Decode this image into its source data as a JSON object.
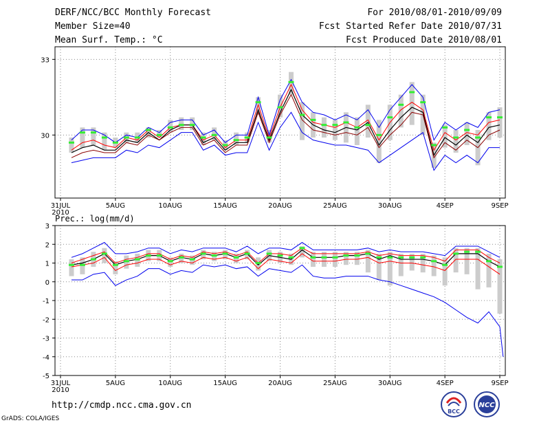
{
  "header": {
    "title": "DERF/NCC/BCC Monthly Forecast",
    "member_size": "Member Size=40",
    "variable": "Mean Surf. Temp.: °C",
    "period": "For 2010/08/01-2010/09/09",
    "fcst_started": "Fcst Started Refer Date 2010/07/31",
    "fcst_produced": "Fcst Produced Date 2010/08/01"
  },
  "footer": {
    "url": "http://cmdp.ncc.cma.gov.cn",
    "grads": "GrADS: COLA/IGES",
    "logo_bcc": "BCC",
    "logo_ncc": "NCC"
  },
  "colors": {
    "max_line": "#0000ee",
    "min_line": "#0000ee",
    "mean_line": "#000000",
    "dark_red_line": "#8b0000",
    "red_line": "#ff0000",
    "green_mark": "#33ee33",
    "box": "#cccccc"
  },
  "chart_data": [
    {
      "type": "line",
      "panel": "temperature",
      "title": "Mean Surf. Temp.: °C",
      "x_tick_labels": [
        "31JUL",
        "5AUG",
        "10AUG",
        "15AUG",
        "20AUG",
        "25AUG",
        "30AUG",
        "4SEP",
        "9SEP"
      ],
      "x_tick_days": [
        0,
        5,
        10,
        15,
        20,
        25,
        30,
        35,
        40
      ],
      "x_sublabel": "2010",
      "xlim": [
        -0.5,
        40.5
      ],
      "ylim": [
        27.5,
        33.5
      ],
      "y_ticks": [
        30,
        33
      ],
      "grid": true,
      "x": [
        1,
        2,
        3,
        4,
        5,
        6,
        7,
        8,
        9,
        10,
        11,
        12,
        13,
        14,
        15,
        16,
        17,
        18,
        19,
        20,
        21,
        22,
        23,
        24,
        25,
        26,
        27,
        28,
        29,
        30,
        31,
        32,
        33,
        34,
        35,
        36,
        37,
        38,
        39,
        40
      ],
      "series": [
        {
          "name": "max",
          "values": [
            29.8,
            30.2,
            30.2,
            30.0,
            29.7,
            30.0,
            29.9,
            30.3,
            30.1,
            30.5,
            30.6,
            30.6,
            30.0,
            30.2,
            29.7,
            30.0,
            30.0,
            31.5,
            30.0,
            31.4,
            32.2,
            31.3,
            30.9,
            30.8,
            30.6,
            30.8,
            30.6,
            31.0,
            30.3,
            31.0,
            31.5,
            32.0,
            31.5,
            29.8,
            30.5,
            30.2,
            30.5,
            30.3,
            30.9,
            31.0
          ]
        },
        {
          "name": "ens_upper",
          "values": [
            29.4,
            29.7,
            29.8,
            29.6,
            29.5,
            29.9,
            29.8,
            30.2,
            29.9,
            30.3,
            30.4,
            30.4,
            29.8,
            30.0,
            29.5,
            29.8,
            29.8,
            31.2,
            29.9,
            31.1,
            32.0,
            31.0,
            30.5,
            30.4,
            30.3,
            30.5,
            30.3,
            30.6,
            29.8,
            30.5,
            31.0,
            31.3,
            31.0,
            29.4,
            30.1,
            29.8,
            30.1,
            30.0,
            30.5,
            30.6
          ]
        },
        {
          "name": "mean",
          "values": [
            29.3,
            29.5,
            29.6,
            29.4,
            29.4,
            29.8,
            29.7,
            30.1,
            29.8,
            30.2,
            30.4,
            30.4,
            29.7,
            29.9,
            29.4,
            29.7,
            29.7,
            31.0,
            29.8,
            30.9,
            31.8,
            30.8,
            30.4,
            30.2,
            30.1,
            30.3,
            30.2,
            30.5,
            29.6,
            30.2,
            30.7,
            31.1,
            30.9,
            29.2,
            29.9,
            29.6,
            30.0,
            29.7,
            30.3,
            30.4
          ]
        },
        {
          "name": "ens_lower",
          "values": [
            29.1,
            29.3,
            29.4,
            29.3,
            29.3,
            29.7,
            29.6,
            30.0,
            29.8,
            30.1,
            30.3,
            30.3,
            29.6,
            29.8,
            29.3,
            29.6,
            29.6,
            30.9,
            29.7,
            30.8,
            31.6,
            30.6,
            30.2,
            30.1,
            30.0,
            30.1,
            30.0,
            30.3,
            29.5,
            30.0,
            30.4,
            30.9,
            30.8,
            29.1,
            29.7,
            29.4,
            29.8,
            29.5,
            30.0,
            30.2
          ]
        },
        {
          "name": "min",
          "values": [
            28.9,
            29.0,
            29.1,
            29.1,
            29.1,
            29.4,
            29.3,
            29.6,
            29.5,
            29.8,
            30.1,
            30.1,
            29.4,
            29.6,
            29.2,
            29.3,
            29.3,
            30.5,
            29.4,
            30.3,
            30.9,
            30.1,
            29.8,
            29.7,
            29.6,
            29.6,
            29.5,
            29.4,
            28.9,
            29.2,
            29.5,
            29.8,
            30.1,
            28.6,
            29.2,
            28.9,
            29.2,
            28.9,
            29.5,
            29.5
          ]
        },
        {
          "name": "green",
          "values": [
            29.7,
            30.1,
            30.1,
            29.9,
            29.7,
            29.9,
            29.9,
            30.2,
            30.0,
            30.3,
            30.4,
            30.4,
            29.9,
            30.0,
            29.6,
            29.8,
            29.9,
            31.3,
            29.9,
            31.1,
            32.1,
            30.8,
            30.6,
            30.4,
            30.4,
            30.5,
            30.3,
            30.4,
            30.0,
            30.7,
            31.2,
            31.7,
            31.3,
            29.6,
            30.3,
            29.9,
            30.2,
            29.9,
            30.7,
            30.7
          ]
        }
      ],
      "boxes": {
        "lower": [
          29.3,
          29.5,
          29.6,
          29.4,
          29.5,
          29.7,
          29.7,
          29.9,
          29.9,
          30.1,
          30.2,
          30.2,
          29.6,
          29.8,
          29.4,
          29.6,
          29.7,
          30.8,
          29.7,
          30.7,
          31.6,
          29.8,
          29.9,
          29.9,
          29.8,
          29.7,
          29.6,
          29.9,
          28.9,
          29.8,
          30.3,
          30.4,
          30.0,
          28.7,
          29.5,
          29.3,
          29.6,
          28.8,
          29.8,
          29.9
        ],
        "upper": [
          29.9,
          30.3,
          30.3,
          30.1,
          29.9,
          30.1,
          30.1,
          30.3,
          30.2,
          30.6,
          30.7,
          30.7,
          30.1,
          30.3,
          29.8,
          30.1,
          30.1,
          31.5,
          30.2,
          31.6,
          32.5,
          31.3,
          30.9,
          30.7,
          30.6,
          30.9,
          30.7,
          31.2,
          30.6,
          31.2,
          31.6,
          32.1,
          31.6,
          29.7,
          30.4,
          30.2,
          30.5,
          30.2,
          30.9,
          31.1
        ]
      }
    },
    {
      "type": "line",
      "panel": "precipitation",
      "title": "Prec.: log(mm/d)",
      "x_tick_labels": [
        "31JUL",
        "5AUG",
        "10AUG",
        "15AUG",
        "20AUG",
        "25AUG",
        "30AUG",
        "4SEP",
        "9SEP"
      ],
      "x_tick_days": [
        0,
        5,
        10,
        15,
        20,
        25,
        30,
        35,
        40
      ],
      "x_sublabel": "2010",
      "xlim": [
        -0.5,
        40.5
      ],
      "ylim": [
        -5,
        3
      ],
      "y_ticks": [
        3,
        2,
        1,
        0,
        -1,
        -2,
        -3,
        -4,
        -5
      ],
      "grid": true,
      "x": [
        1,
        2,
        3,
        4,
        5,
        6,
        7,
        8,
        9,
        10,
        11,
        12,
        13,
        14,
        15,
        16,
        17,
        18,
        19,
        20,
        21,
        22,
        23,
        24,
        25,
        26,
        27,
        28,
        29,
        30,
        31,
        32,
        33,
        34,
        35,
        36,
        37,
        38,
        39,
        40
      ],
      "series": [
        {
          "name": "max",
          "values": [
            1.3,
            1.5,
            1.8,
            2.1,
            1.5,
            1.5,
            1.6,
            1.8,
            1.8,
            1.5,
            1.7,
            1.6,
            1.8,
            1.8,
            1.8,
            1.6,
            1.9,
            1.5,
            1.8,
            1.8,
            1.7,
            2.1,
            1.7,
            1.7,
            1.7,
            1.7,
            1.7,
            1.8,
            1.6,
            1.7,
            1.6,
            1.6,
            1.6,
            1.5,
            1.4,
            1.9,
            1.9,
            1.9,
            1.6,
            1.3
          ]
        },
        {
          "name": "ens_upper",
          "values": [
            1.0,
            1.2,
            1.4,
            1.6,
            1.0,
            1.2,
            1.3,
            1.5,
            1.5,
            1.2,
            1.4,
            1.3,
            1.6,
            1.5,
            1.6,
            1.4,
            1.6,
            1.0,
            1.5,
            1.5,
            1.4,
            1.8,
            1.5,
            1.5,
            1.5,
            1.5,
            1.5,
            1.6,
            1.4,
            1.5,
            1.4,
            1.4,
            1.4,
            1.3,
            1.1,
            1.7,
            1.7,
            1.7,
            1.3,
            1.0
          ]
        },
        {
          "name": "mean",
          "values": [
            0.9,
            1.0,
            1.2,
            1.5,
            0.9,
            1.1,
            1.2,
            1.4,
            1.4,
            1.1,
            1.3,
            1.2,
            1.5,
            1.4,
            1.5,
            1.3,
            1.5,
            0.9,
            1.4,
            1.3,
            1.2,
            1.7,
            1.3,
            1.3,
            1.3,
            1.4,
            1.4,
            1.5,
            1.2,
            1.4,
            1.2,
            1.2,
            1.2,
            1.1,
            0.9,
            1.5,
            1.5,
            1.5,
            1.1,
            0.8
          ]
        },
        {
          "name": "red",
          "values": [
            0.8,
            0.9,
            1.0,
            1.3,
            0.6,
            0.9,
            1.0,
            1.2,
            1.2,
            0.9,
            1.1,
            1.0,
            1.3,
            1.2,
            1.3,
            1.1,
            1.3,
            0.7,
            1.2,
            1.1,
            1.0,
            1.5,
            1.1,
            1.1,
            1.1,
            1.2,
            1.2,
            1.3,
            1.0,
            1.1,
            1.0,
            1.0,
            0.9,
            0.8,
            0.6,
            1.2,
            1.2,
            1.2,
            0.8,
            0.4
          ]
        },
        {
          "name": "min",
          "values": [
            0.1,
            0.1,
            0.4,
            0.5,
            -0.2,
            0.1,
            0.3,
            0.7,
            0.7,
            0.4,
            0.6,
            0.5,
            0.9,
            0.8,
            0.9,
            0.7,
            0.8,
            0.3,
            0.7,
            0.6,
            0.5,
            0.9,
            0.3,
            0.2,
            0.2,
            0.3,
            0.3,
            0.3,
            0.1,
            0.0,
            -0.2,
            -0.4,
            -0.6,
            -0.8,
            -1.1,
            -1.5,
            -1.9,
            -2.2,
            -1.6,
            -2.4
          ]
        },
        {
          "name": "green",
          "values": [
            0.9,
            0.9,
            1.2,
            1.5,
            0.9,
            1.1,
            1.2,
            1.4,
            1.4,
            1.1,
            1.3,
            1.2,
            1.5,
            1.4,
            1.5,
            1.3,
            1.5,
            1.0,
            1.5,
            1.4,
            1.3,
            1.8,
            1.3,
            1.3,
            1.3,
            1.4,
            1.4,
            1.5,
            1.3,
            1.3,
            1.3,
            1.3,
            1.3,
            1.1,
            0.9,
            1.5,
            1.6,
            1.6,
            1.1,
            0.8
          ]
        }
      ],
      "extra_min_tail": {
        "x": 40.3,
        "y": -4.0
      },
      "boxes": {
        "lower": [
          0.3,
          0.4,
          0.8,
          1.0,
          0.4,
          0.7,
          0.8,
          1.1,
          1.1,
          0.8,
          1.0,
          0.9,
          1.2,
          1.1,
          1.2,
          1.0,
          1.2,
          0.6,
          1.1,
          1.0,
          0.9,
          1.3,
          0.8,
          0.8,
          0.8,
          0.9,
          0.9,
          0.5,
          0.1,
          -0.2,
          0.3,
          0.6,
          0.5,
          0.3,
          -0.2,
          0.5,
          0.4,
          -0.4,
          -0.3,
          -1.7
        ],
        "upper": [
          1.2,
          1.3,
          1.6,
          1.8,
          1.1,
          1.4,
          1.5,
          1.7,
          1.7,
          1.3,
          1.5,
          1.4,
          1.7,
          1.6,
          1.7,
          1.5,
          1.7,
          1.3,
          1.7,
          1.6,
          1.5,
          1.9,
          1.6,
          1.6,
          1.6,
          1.6,
          1.6,
          1.7,
          1.5,
          1.6,
          1.5,
          1.5,
          1.5,
          1.4,
          1.3,
          1.8,
          1.8,
          1.8,
          1.5,
          1.2
        ]
      }
    }
  ]
}
